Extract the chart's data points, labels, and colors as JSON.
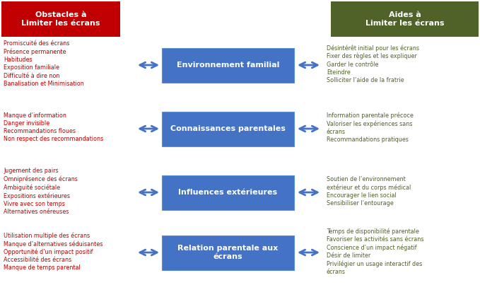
{
  "title_left": "Obstacles à\nLimiter les écrans",
  "title_right": "Aides à\nLimiter les écrans",
  "title_left_color": "#C00000",
  "title_right_color": "#4F6228",
  "box_color": "#4472C4",
  "box_text_color": "#FFFFFF",
  "arrow_color": "#4472C4",
  "left_text_color": "#C00000",
  "right_text_color": "#4F6228",
  "boxes": [
    "Environnement familial",
    "Connaissances parentales",
    "Influences extérieures",
    "Relation parentale aux\nécrans"
  ],
  "left_items": [
    [
      "Promiscuité des écrans",
      "Présence permanente",
      "Habitudes",
      "Exposition familiale",
      "Difficulté à dire non",
      "Banalisation et Minimisation"
    ],
    [
      "Manque d’information",
      "Danger invisible",
      "Recommandations floues",
      "Non respect des recommandations"
    ],
    [
      "Jugement des pairs",
      "Omniprésence des écrans",
      "Ambiguité sociétale",
      "Expositions extérieures",
      "Vivre avec son temps",
      "Alternatives onéreuses"
    ],
    [
      "Utilisation multiple des écrans",
      "Manque d’alternatives séduisantes",
      "Opportunité d’un impact positif",
      "Accessibilité des écrans",
      "Manque de temps parental"
    ]
  ],
  "right_items": [
    [
      "Désintérêt initial pour les écrans",
      "Fixer des règles et les expliquer",
      "Garder le contrôle",
      "Eteindre",
      "Solliciter l’aide de la fratrie"
    ],
    [
      "Information parentale précoce",
      "Valoriser les expériences sans\nécrans",
      "Recommandations pratiques"
    ],
    [
      "Soutien de l’environnement\nextérieur et du corps médical",
      "Encourager le lien social",
      "Sensibiliser l’entourage"
    ],
    [
      "Temps de disponibilité parentale",
      "Favoriser les activités sans écrans",
      "Conscience d’un impact négatif",
      "Désir de limiter",
      "Privilégier un usage interactif des\nécrans"
    ]
  ],
  "bg_color": "#FFFFFF",
  "figsize": [
    6.79,
    4.03
  ],
  "dpi": 100
}
